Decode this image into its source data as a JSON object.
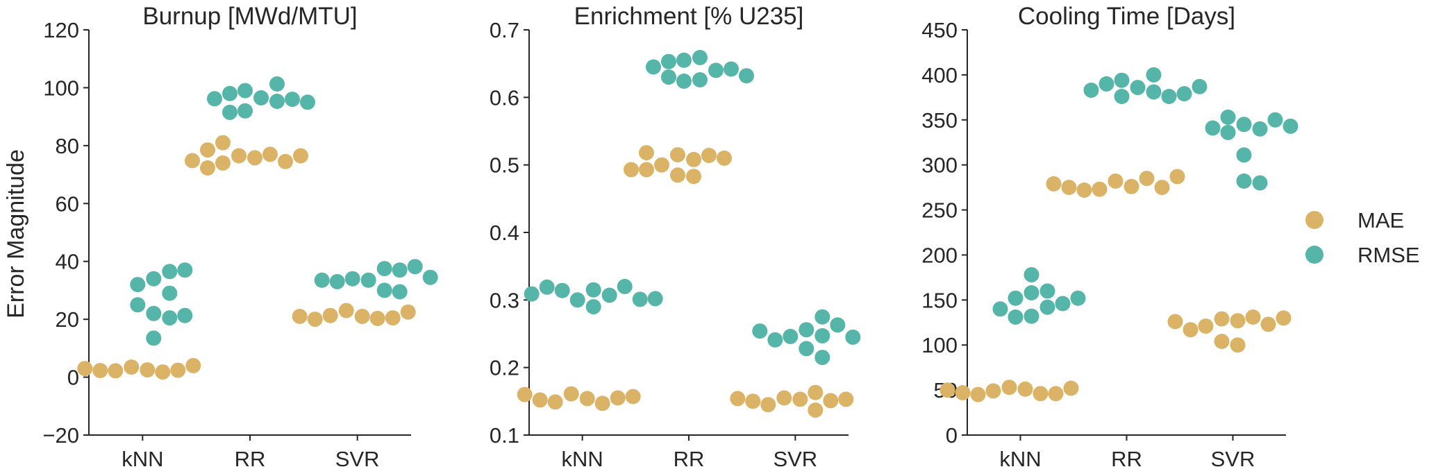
{
  "chart_data": [
    {
      "type": "scatter",
      "title": "Burnup [MWd/MTU]",
      "ylabel": "Error Magnitude",
      "categories": [
        "kNN",
        "RR",
        "SVR"
      ],
      "ylim": [
        -20,
        120
      ],
      "yticks": [
        "−20",
        "0",
        "20",
        "40",
        "60",
        "80",
        "100",
        "120"
      ],
      "series": [
        {
          "name": "MAE",
          "color": "#dbb366",
          "values": [
            [
              3.5,
              2.5,
              2.2,
              1.8,
              2.3,
              2.4,
              3.0,
              4.0
            ],
            [
              76.5,
              75.8,
              74.0,
              81.0,
              77.0,
              72.3,
              74.5,
              74.8,
              76.5,
              78.5
            ],
            [
              23.0,
              21.0,
              21.3,
              20.3,
              20.0,
              20.5,
              21.0,
              22.5
            ]
          ]
        },
        {
          "name": "RMSE",
          "color": "#55b5a8",
          "values": [
            [
              22.0,
              34.0,
              29.0,
              25.0,
              20.5,
              36.5,
              32.0,
              21.3,
              13.5,
              37.0
            ],
            [
              96.5,
              95.3,
              92.0,
              101.3,
              96.0,
              91.5,
              99.0,
              95.0,
              96.2,
              98.0
            ],
            [
              33.5,
              37.5,
              30.0,
              34.0,
              29.5,
              37.0,
              33.0,
              38.2,
              33.5,
              34.5
            ]
          ]
        }
      ]
    },
    {
      "type": "scatter",
      "title": "Enrichment [% U235]",
      "categories": [
        "kNN",
        "RR",
        "SVR"
      ],
      "ylim": [
        0.1,
        0.7
      ],
      "yticks": [
        "0.1",
        "0.2",
        "0.3",
        "0.4",
        "0.5",
        "0.6",
        "0.7"
      ],
      "series": [
        {
          "name": "MAE",
          "color": "#dbb366",
          "values": [
            [
              0.161,
              0.154,
              0.149,
              0.147,
              0.152,
              0.155,
              0.16,
              0.157
            ],
            [
              0.515,
              0.508,
              0.485,
              0.5,
              0.483,
              0.514,
              0.493,
              0.51,
              0.493,
              0.518
            ],
            [
              0.155,
              0.153,
              0.145,
              0.137,
              0.163,
              0.15,
              0.151,
              0.154,
              0.153
            ]
          ]
        },
        {
          "name": "RMSE",
          "color": "#55b5a8",
          "values": [
            [
              0.315,
              0.307,
              0.3,
              0.32,
              0.29,
              0.314,
              0.301,
              0.319,
              0.302,
              0.309
            ],
            [
              0.659,
              0.64,
              0.655,
              0.626,
              0.642,
              0.624,
              0.653,
              0.63,
              0.632,
              0.645
            ],
            [
              0.256,
              0.247,
              0.246,
              0.228,
              0.263,
              0.241,
              0.215,
              0.275,
              0.245,
              0.254
            ]
          ]
        }
      ]
    },
    {
      "type": "scatter",
      "title": "Cooling Time [Days]",
      "categories": [
        "kNN",
        "RR",
        "SVR"
      ],
      "ylim": [
        0,
        450
      ],
      "yticks": [
        "0",
        "50",
        "100",
        "150",
        "200",
        "250",
        "300",
        "350",
        "400",
        "450"
      ],
      "series": [
        {
          "name": "MAE",
          "color": "#dbb366",
          "values": [
            [
              53,
              51,
              49,
              46,
              45,
              46,
              47,
              52,
              50
            ],
            [
              282,
              276,
              273,
              285,
              272,
              275,
              275,
              287,
              279
            ],
            [
              129,
              127,
              121,
              104,
              131,
              117,
              100,
              123,
              126,
              130
            ]
          ]
        },
        {
          "name": "RMSE",
          "color": "#55b5a8",
          "values": [
            [
              158,
              142,
              152,
              132,
              178,
              146,
              131,
              160,
              140,
              152
            ],
            [
              386,
              381,
              376,
              400,
              376,
              390,
              379,
              394,
              383,
              387
            ],
            [
              345,
              340,
              282,
              336,
              350,
              311,
              280,
              341,
              343,
              353
            ]
          ]
        }
      ]
    }
  ],
  "legend": {
    "placement": "right",
    "items": [
      {
        "label": "MAE",
        "color": "#dbb366"
      },
      {
        "label": "RMSE",
        "color": "#55b5a8"
      }
    ]
  }
}
